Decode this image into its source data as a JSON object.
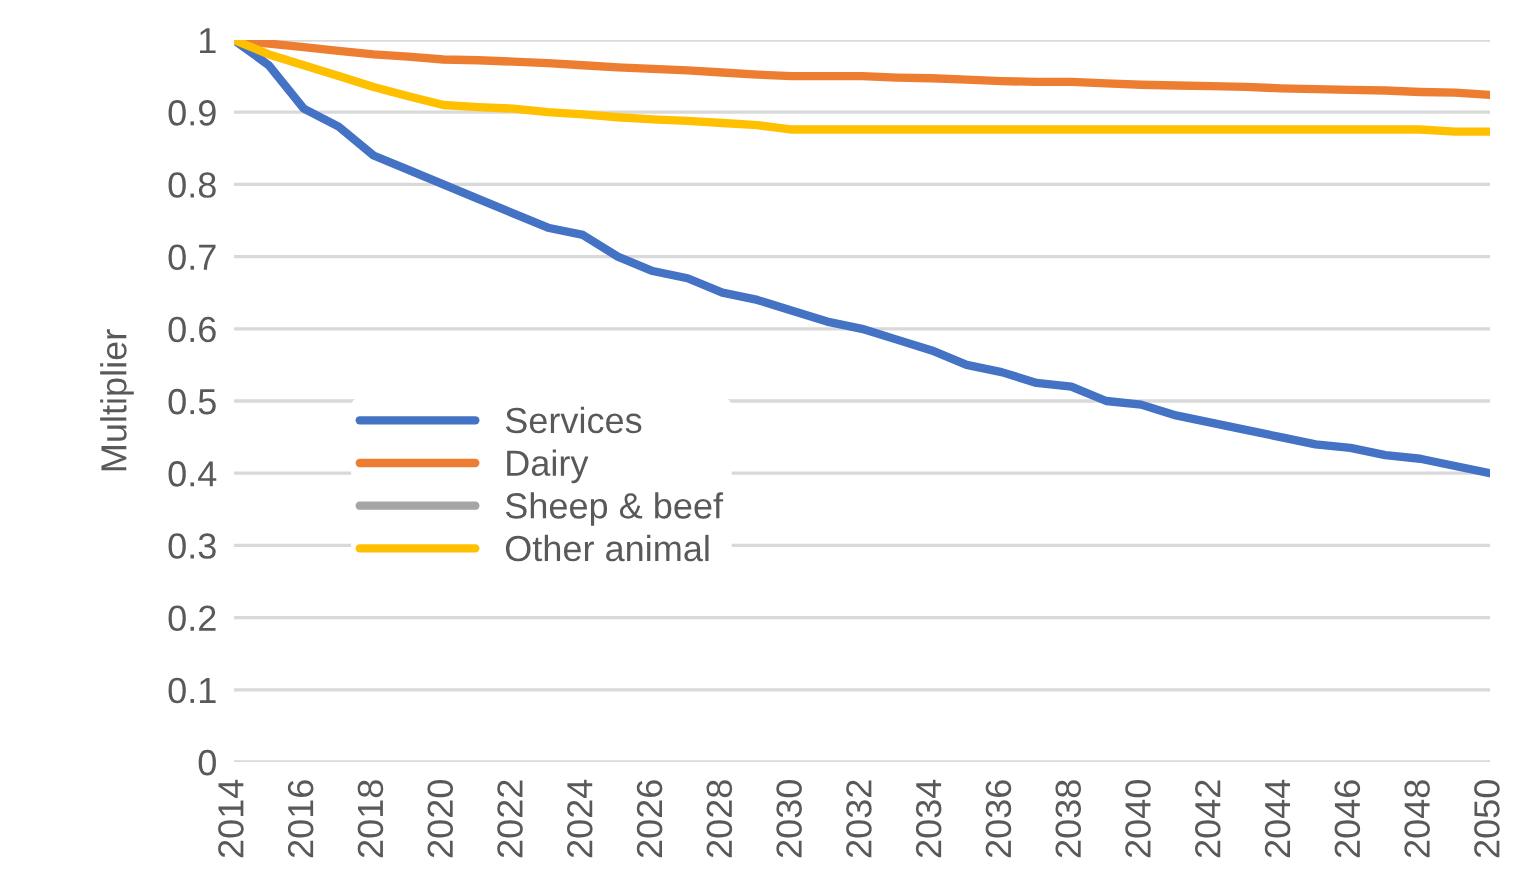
{
  "chart_data": {
    "type": "line",
    "ylabel": "Multiplier",
    "x": [
      2014,
      2015,
      2016,
      2017,
      2018,
      2019,
      2020,
      2021,
      2022,
      2023,
      2024,
      2025,
      2026,
      2027,
      2028,
      2029,
      2030,
      2031,
      2032,
      2033,
      2034,
      2035,
      2036,
      2037,
      2038,
      2039,
      2040,
      2041,
      2042,
      2043,
      2044,
      2045,
      2046,
      2047,
      2048,
      2049,
      2050
    ],
    "series": [
      {
        "name": "Services",
        "color": "#4472c4",
        "values": [
          1.0,
          0.965,
          0.905,
          0.88,
          0.84,
          0.82,
          0.8,
          0.78,
          0.76,
          0.74,
          0.73,
          0.7,
          0.68,
          0.67,
          0.65,
          0.64,
          0.625,
          0.61,
          0.6,
          0.585,
          0.57,
          0.55,
          0.54,
          0.525,
          0.52,
          0.5,
          0.495,
          0.48,
          0.47,
          0.46,
          0.45,
          0.44,
          0.435,
          0.425,
          0.42,
          0.41,
          0.4
        ]
      },
      {
        "name": "Dairy",
        "color": "#ed7d31",
        "values": [
          1.0,
          0.995,
          0.99,
          0.985,
          0.98,
          0.977,
          0.973,
          0.972,
          0.97,
          0.968,
          0.965,
          0.962,
          0.96,
          0.958,
          0.955,
          0.952,
          0.95,
          0.95,
          0.95,
          0.948,
          0.947,
          0.945,
          0.943,
          0.942,
          0.942,
          0.94,
          0.938,
          0.937,
          0.936,
          0.935,
          0.933,
          0.932,
          0.931,
          0.93,
          0.928,
          0.927,
          0.924
        ]
      },
      {
        "name": "Sheep & beef",
        "color": "#a5a5a5",
        "values": [
          null,
          null,
          null,
          null,
          null,
          null,
          null,
          null,
          null,
          null,
          null,
          null,
          null,
          null,
          null,
          null,
          null,
          null,
          null,
          null,
          null,
          null,
          null,
          null,
          null,
          null,
          null,
          null,
          null,
          null,
          null,
          null,
          null,
          null,
          null,
          null,
          null
        ]
      },
      {
        "name": "Other animal",
        "color": "#ffc000",
        "values": [
          1.0,
          0.98,
          0.965,
          0.95,
          0.935,
          0.922,
          0.91,
          0.907,
          0.905,
          0.9,
          0.897,
          0.893,
          0.89,
          0.888,
          0.885,
          0.882,
          0.876,
          0.876,
          0.876,
          0.876,
          0.876,
          0.876,
          0.876,
          0.876,
          0.876,
          0.876,
          0.876,
          0.876,
          0.876,
          0.876,
          0.876,
          0.876,
          0.876,
          0.876,
          0.876,
          0.873,
          0.873
        ]
      }
    ],
    "xlim": [
      2014,
      2050
    ],
    "xticks": [
      2014,
      2016,
      2018,
      2020,
      2022,
      2024,
      2026,
      2028,
      2030,
      2032,
      2034,
      2036,
      2038,
      2040,
      2042,
      2044,
      2046,
      2048,
      2050
    ],
    "ylim": [
      0,
      1
    ],
    "yticks": [
      0,
      0.1,
      0.2,
      0.3,
      0.4,
      0.5,
      0.6,
      0.7,
      0.8,
      0.9,
      1
    ],
    "grid": "y",
    "legend": "left",
    "marker": "none",
    "line_style": "solid"
  }
}
